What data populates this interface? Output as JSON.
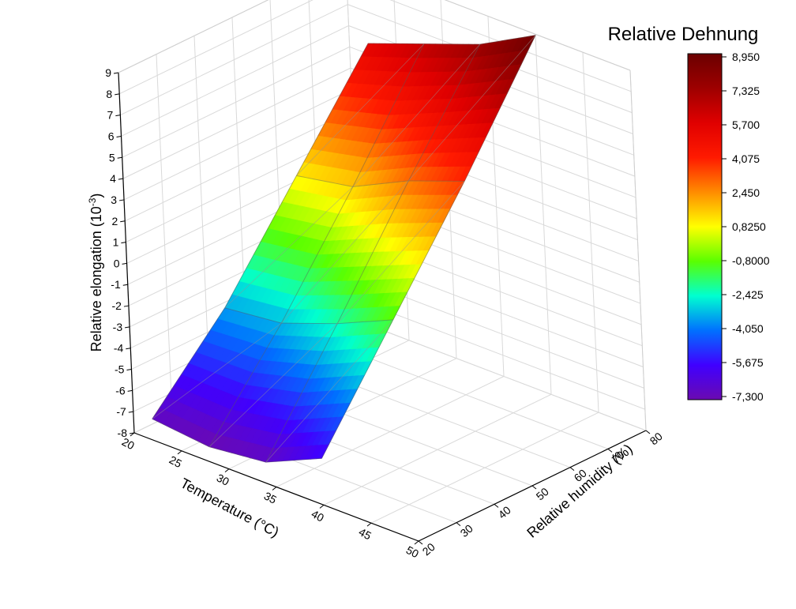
{
  "chart_data": {
    "type": "3d-surface",
    "colorbar_title": "Relative Dehnung",
    "colorbar_labels": [
      "8,950",
      "7,325",
      "5,700",
      "4,075",
      "2,450",
      "0,8250",
      "-0,8000",
      "-2,425",
      "-4,050",
      "-5,675",
      "-7,300"
    ],
    "colorbar_range": [
      -7.3,
      8.95
    ],
    "z_axis": {
      "label": "Relative elongation (10",
      "label_sup": "-3",
      "label_end": ")",
      "ticks": [
        "9",
        "8",
        "7",
        "6",
        "5",
        "4",
        "3",
        "2",
        "1",
        "0",
        "-1",
        "-2",
        "-3",
        "-4",
        "-5",
        "-6",
        "-7",
        "-8"
      ],
      "range": [
        -8,
        9
      ]
    },
    "x_axis": {
      "label": "Temperature (°C)",
      "ticks": [
        "20",
        "25",
        "30",
        "35",
        "40",
        "45",
        "50"
      ],
      "range": [
        20,
        50
      ]
    },
    "y_axis": {
      "label": "Relative humidity (%)",
      "ticks": [
        "20",
        "30",
        "40",
        "50",
        "60",
        "70",
        "80"
      ],
      "range": [
        20,
        80
      ]
    },
    "grid": true,
    "surface_grid": {
      "temperatures": [
        22,
        28,
        34,
        40
      ],
      "humidities": [
        20,
        40,
        60,
        80
      ],
      "z": [
        [
          -7.0,
          -3.5,
          1.0,
          5.5
        ],
        [
          -7.3,
          -3.2,
          1.5,
          6.5
        ],
        [
          -7.0,
          -2.2,
          2.8,
          7.5
        ],
        [
          -5.8,
          -1.0,
          3.8,
          8.95
        ]
      ]
    }
  }
}
